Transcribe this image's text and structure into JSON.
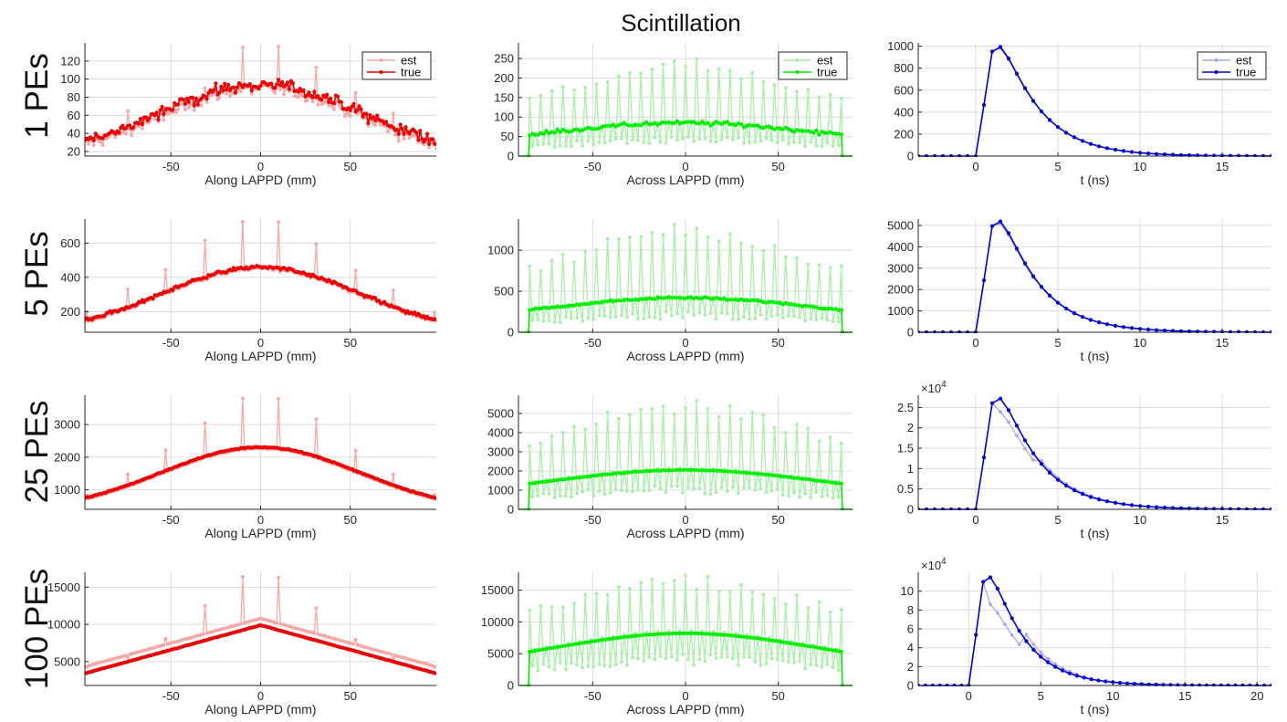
{
  "figure": {
    "suptitle": "Scintillation",
    "rows": [
      "1 PEs",
      "5 PEs",
      "25 PEs",
      "100 PEs"
    ],
    "colors": {
      "red_true": "#ee0000",
      "red_est": "#f6a8a8",
      "green_true": "#00ee00",
      "green_est": "#a8f0a8",
      "blue_true": "#0000dd",
      "blue_est": "#a8a8ee"
    },
    "legend": [
      "est",
      "true"
    ]
  },
  "chart_data": [
    {
      "type": "line",
      "row": "1 PEs",
      "xlabel": "Along LAPPD (mm)",
      "xlim": [
        -98,
        98
      ],
      "ylim": [
        15,
        140
      ],
      "xticks": [
        -50,
        0,
        50
      ],
      "xtick_labels": [
        "-50",
        "0",
        "50"
      ],
      "yticks": [
        20,
        40,
        60,
        80,
        100,
        120
      ],
      "ytick_labels": [
        "20",
        "40",
        "60",
        "80",
        "100",
        "120"
      ],
      "gen": {
        "kind": "along",
        "mode": "gauss",
        "amp": 78,
        "base": 16,
        "noise": 10,
        "est_offset": -4,
        "spikes": [
          [
            -97,
            35
          ],
          [
            -74,
            65
          ],
          [
            -53,
            68
          ],
          [
            -31,
            90
          ],
          [
            -10,
            135
          ],
          [
            10,
            136
          ],
          [
            31,
            113
          ],
          [
            53,
            85
          ],
          [
            74,
            62
          ],
          [
            97,
            32
          ]
        ]
      },
      "series": [
        {
          "name": "est",
          "color": "#f6a8a8"
        },
        {
          "name": "true",
          "color": "#ee0000"
        }
      ],
      "legend": "top-right"
    },
    {
      "type": "line",
      "row": "1 PEs",
      "xlabel": "Across LAPPD (mm)",
      "xlim": [
        -90,
        90
      ],
      "ylim": [
        0,
        290
      ],
      "xticks": [
        -50,
        0,
        50
      ],
      "xtick_labels": [
        "-50",
        "0",
        "50"
      ],
      "yticks": [
        0,
        50,
        100,
        150,
        200,
        250
      ],
      "ytick_labels": [
        "0",
        "50",
        "100",
        "150",
        "200",
        "250"
      ],
      "gen": {
        "kind": "across",
        "amp": 85,
        "base": 26,
        "noise": 8,
        "spike_amp": 250,
        "spike_base": 100,
        "est_scale": 0.55,
        "edge": 84
      },
      "series": [
        {
          "name": "est",
          "color": "#a8f0a8"
        },
        {
          "name": "true",
          "color": "#00ee00"
        }
      ],
      "legend": "top-right"
    },
    {
      "type": "line",
      "row": "1 PEs",
      "xlabel": "t (ns)",
      "xlim": [
        -3.5,
        18
      ],
      "ylim": [
        0,
        1030
      ],
      "xticks": [
        0,
        5,
        10,
        15
      ],
      "xtick_labels": [
        "0",
        "5",
        "10",
        "15"
      ],
      "yticks": [
        0,
        200,
        400,
        600,
        800,
        1000
      ],
      "ytick_labels": [
        "0",
        "200",
        "400",
        "600",
        "800",
        "1000"
      ],
      "gen": {
        "kind": "time",
        "xmax": 18,
        "peak": 1005,
        "est_dip": 0.99
      },
      "series": [
        {
          "name": "est",
          "color": "#a8a8ee"
        },
        {
          "name": "true",
          "color": "#0000dd"
        }
      ],
      "legend": "top-right"
    },
    {
      "type": "line",
      "row": "5 PEs",
      "xlabel": "Along LAPPD (mm)",
      "xlim": [
        -98,
        98
      ],
      "ylim": [
        80,
        740
      ],
      "xticks": [
        -50,
        0,
        50
      ],
      "xtick_labels": [
        "-50",
        "0",
        "50"
      ],
      "yticks": [
        200,
        400,
        600
      ],
      "ytick_labels": [
        "200",
        "400",
        "600"
      ],
      "gen": {
        "kind": "along",
        "mode": "gauss",
        "amp": 390,
        "base": 70,
        "noise": 14,
        "est_offset": -8,
        "spikes": [
          [
            -97,
            200
          ],
          [
            -74,
            330
          ],
          [
            -53,
            445
          ],
          [
            -31,
            615
          ],
          [
            -10,
            725
          ],
          [
            10,
            722
          ],
          [
            31,
            595
          ],
          [
            53,
            440
          ],
          [
            74,
            325
          ],
          [
            97,
            195
          ]
        ]
      },
      "series": [
        {
          "name": "est",
          "color": "#f6a8a8"
        },
        {
          "name": "true",
          "color": "#ee0000"
        }
      ]
    },
    {
      "type": "line",
      "row": "5 PEs",
      "xlabel": "Across LAPPD (mm)",
      "xlim": [
        -90,
        90
      ],
      "ylim": [
        0,
        1380
      ],
      "xticks": [
        -50,
        0,
        50
      ],
      "xtick_labels": [
        "-50",
        "0",
        "50"
      ],
      "yticks": [
        0,
        500,
        1000
      ],
      "ytick_labels": [
        "0",
        "500",
        "1000"
      ],
      "gen": {
        "kind": "across",
        "amp": 420,
        "base": 135,
        "noise": 18,
        "spike_amp": 1330,
        "spike_base": 500,
        "est_scale": 0.55,
        "edge": 84
      },
      "series": [
        {
          "name": "est",
          "color": "#a8f0a8"
        },
        {
          "name": "true",
          "color": "#00ee00"
        }
      ]
    },
    {
      "type": "line",
      "row": "5 PEs",
      "xlabel": "t (ns)",
      "xlim": [
        -3.5,
        18
      ],
      "ylim": [
        0,
        5300
      ],
      "xticks": [
        0,
        5,
        10,
        15
      ],
      "xtick_labels": [
        "0",
        "5",
        "10",
        "15"
      ],
      "yticks": [
        0,
        1000,
        2000,
        3000,
        4000,
        5000
      ],
      "ytick_labels": [
        "0",
        "1000",
        "2000",
        "3000",
        "4000",
        "5000"
      ],
      "gen": {
        "kind": "time",
        "xmax": 18,
        "peak": 5250,
        "est_dip": 0.98
      },
      "series": [
        {
          "name": "est",
          "color": "#a8a8ee"
        },
        {
          "name": "true",
          "color": "#0000dd"
        }
      ]
    },
    {
      "type": "line",
      "row": "25 PEs",
      "xlabel": "Along LAPPD (mm)",
      "xlim": [
        -98,
        98
      ],
      "ylim": [
        400,
        3900
      ],
      "xticks": [
        -50,
        0,
        50
      ],
      "xtick_labels": [
        "-50",
        "0",
        "50"
      ],
      "yticks": [
        1000,
        2000,
        3000
      ],
      "ytick_labels": [
        "1000",
        "2000",
        "3000"
      ],
      "gen": {
        "kind": "along",
        "mode": "gauss",
        "amp": 1960,
        "base": 350,
        "noise": 20,
        "est_offset": -40,
        "spikes": [
          [
            -97,
            830
          ],
          [
            -74,
            1480
          ],
          [
            -53,
            2220
          ],
          [
            -31,
            3050
          ],
          [
            -10,
            3800
          ],
          [
            10,
            3790
          ],
          [
            31,
            3170
          ],
          [
            53,
            2200
          ],
          [
            74,
            1470
          ],
          [
            97,
            840
          ]
        ]
      },
      "series": [
        {
          "name": "est",
          "color": "#f6a8a8"
        },
        {
          "name": "true",
          "color": "#ee0000"
        }
      ]
    },
    {
      "type": "line",
      "row": "25 PEs",
      "xlabel": "Across LAPPD (mm)",
      "xlim": [
        -90,
        90
      ],
      "ylim": [
        0,
        5950
      ],
      "xticks": [
        -50,
        0,
        50
      ],
      "xtick_labels": [
        "-50",
        "0",
        "50"
      ],
      "yticks": [
        0,
        1000,
        2000,
        3000,
        4000,
        5000
      ],
      "ytick_labels": [
        "0",
        "1000",
        "2000",
        "3000",
        "4000",
        "5000"
      ],
      "gen": {
        "kind": "across",
        "amp": 2050,
        "base": 680,
        "noise": 20,
        "spike_amp": 5800,
        "spike_base": 2500,
        "est_scale": 0.55,
        "edge": 84
      },
      "series": [
        {
          "name": "est",
          "color": "#a8f0a8"
        },
        {
          "name": "true",
          "color": "#00ee00"
        }
      ]
    },
    {
      "type": "line",
      "row": "25 PEs",
      "xlabel": "t (ns)",
      "xlim": [
        -3.5,
        18
      ],
      "ylim": [
        0,
        2.8
      ],
      "xticks": [
        0,
        5,
        10,
        15
      ],
      "xtick_labels": [
        "0",
        "5",
        "10",
        "15"
      ],
      "yticks": [
        0,
        0.5,
        1,
        1.5,
        2,
        2.5
      ],
      "ytick_labels": [
        "0",
        "0.5",
        "1",
        "1.5",
        "2",
        "2.5"
      ],
      "exponent": "4",
      "gen": {
        "kind": "time",
        "xmax": 18,
        "peak": 2.75,
        "est_dip": 0.88
      },
      "series": [
        {
          "name": "est",
          "color": "#a8a8ee"
        },
        {
          "name": "true",
          "color": "#0000dd"
        }
      ]
    },
    {
      "type": "line",
      "row": "100 PEs",
      "xlabel": "Along LAPPD (mm)",
      "xlim": [
        -98,
        98
      ],
      "ylim": [
        1800,
        17000
      ],
      "xticks": [
        -50,
        0,
        50
      ],
      "xtick_labels": [
        "-50",
        "0",
        "50"
      ],
      "yticks": [
        5000,
        10000,
        15000
      ],
      "ytick_labels": [
        "5000",
        "10000",
        "15000"
      ],
      "gen": {
        "kind": "along",
        "mode": "tri",
        "amp": 7800,
        "base": 2100,
        "noise": 40,
        "est_offset": 900,
        "spikes": [
          [
            -97,
            4300
          ],
          [
            -74,
            5500
          ],
          [
            -53,
            8100
          ],
          [
            -31,
            12500
          ],
          [
            -10,
            16400
          ],
          [
            10,
            16300
          ],
          [
            31,
            12200
          ],
          [
            53,
            7950
          ],
          [
            74,
            5400
          ],
          [
            97,
            4300
          ]
        ]
      },
      "series": [
        {
          "name": "est",
          "color": "#f6a8a8"
        },
        {
          "name": "true",
          "color": "#ee0000"
        }
      ]
    },
    {
      "type": "line",
      "row": "100 PEs",
      "xlabel": "Across LAPPD (mm)",
      "xlim": [
        -90,
        90
      ],
      "ylim": [
        0,
        17800
      ],
      "xticks": [
        -50,
        0,
        50
      ],
      "xtick_labels": [
        "-50",
        "0",
        "50"
      ],
      "yticks": [
        0,
        5000,
        10000,
        15000
      ],
      "ytick_labels": [
        "0",
        "5000",
        "10000",
        "15000"
      ],
      "gen": {
        "kind": "across",
        "amp": 8200,
        "base": 2600,
        "noise": 30,
        "spike_amp": 17500,
        "spike_base": 10000,
        "est_scale": 0.55,
        "edge": 84
      },
      "series": [
        {
          "name": "est",
          "color": "#a8f0a8"
        },
        {
          "name": "true",
          "color": "#00ee00"
        }
      ]
    },
    {
      "type": "line",
      "row": "100 PEs",
      "xlabel": "t (ns)",
      "xlim": [
        -3.5,
        21
      ],
      "ylim": [
        0,
        12
      ],
      "xticks": [
        0,
        5,
        10,
        15,
        20
      ],
      "xtick_labels": [
        "0",
        "5",
        "10",
        "15",
        "20"
      ],
      "yticks": [
        0,
        2,
        4,
        6,
        8,
        10
      ],
      "ytick_labels": [
        "0",
        "2",
        "4",
        "6",
        "8",
        "10"
      ],
      "exponent": "4",
      "gen": {
        "kind": "time",
        "xmax": 21,
        "peak": 11.6,
        "est_dip": 0.75
      },
      "series": [
        {
          "name": "est",
          "color": "#a8a8ee"
        },
        {
          "name": "true",
          "color": "#0000dd"
        }
      ]
    }
  ]
}
